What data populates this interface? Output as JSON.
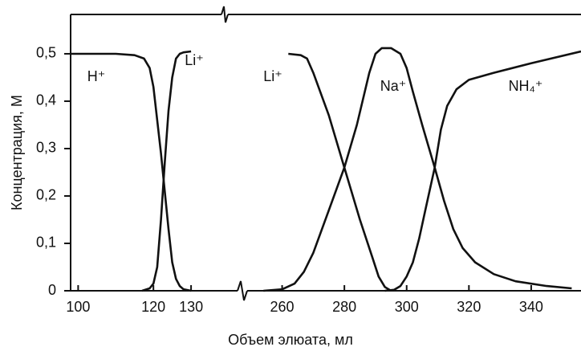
{
  "chart_data": {
    "type": "line",
    "y_label": "Концентрация, М",
    "x_label": "Объем элюата, мл",
    "ylim": [
      0,
      0.583
    ],
    "yticks": [
      0,
      {
        "value": 0.1,
        "label": "0,1"
      },
      {
        "value": 0.2,
        "label": "0,2"
      },
      {
        "value": 0.3,
        "label": "0,3"
      },
      {
        "value": 0.4,
        "label": "0,4"
      },
      {
        "value": 0.5,
        "label": "0,5"
      }
    ],
    "x_segments": [
      {
        "xlim": [
          98,
          140
        ],
        "xticks": [
          100,
          120,
          130
        ]
      },
      {
        "xlim": [
          248,
          356
        ],
        "xticks": [
          260,
          280,
          300,
          320,
          340
        ]
      }
    ],
    "series": [
      {
        "name": "H⁺",
        "color": "#111111",
        "segment": 0,
        "x": [
          98,
          110,
          115,
          117.5,
          119,
          120,
          121,
          122,
          123,
          124,
          125,
          126,
          127,
          128,
          130
        ],
        "values": [
          0.5,
          0.5,
          0.497,
          0.49,
          0.47,
          0.43,
          0.36,
          0.29,
          0.21,
          0.13,
          0.06,
          0.025,
          0.01,
          0.003,
          0
        ]
      },
      {
        "name": "Li⁺",
        "color": "#111111",
        "segment": 0,
        "x": [
          117,
          119,
          120,
          121,
          122,
          123,
          124,
          125,
          126,
          127,
          128,
          130
        ],
        "values": [
          0,
          0.005,
          0.015,
          0.05,
          0.15,
          0.27,
          0.38,
          0.45,
          0.49,
          0.5,
          0.503,
          0.505
        ]
      },
      {
        "name": "Li⁺",
        "color": "#111111",
        "segment": 1,
        "x": [
          262,
          266,
          268,
          270,
          275,
          280,
          285,
          289,
          291,
          293,
          295
        ],
        "values": [
          0.5,
          0.497,
          0.49,
          0.46,
          0.37,
          0.26,
          0.15,
          0.07,
          0.03,
          0.008,
          0
        ]
      },
      {
        "name": "Na⁺",
        "color": "#111111",
        "segment": 1,
        "x": [
          254,
          260,
          264,
          267,
          270,
          275,
          280,
          284,
          288,
          290,
          292,
          295,
          298,
          300,
          302,
          305,
          309,
          312,
          315,
          318,
          322,
          328,
          335,
          345,
          353
        ],
        "values": [
          0,
          0.003,
          0.015,
          0.04,
          0.08,
          0.17,
          0.26,
          0.35,
          0.46,
          0.5,
          0.512,
          0.512,
          0.5,
          0.47,
          0.42,
          0.35,
          0.26,
          0.19,
          0.13,
          0.09,
          0.06,
          0.035,
          0.02,
          0.01,
          0.005
        ]
      },
      {
        "name": "NH₄⁺",
        "color": "#111111",
        "segment": 1,
        "x": [
          293,
          296,
          298,
          300,
          302,
          304,
          306,
          309,
          311,
          313,
          316,
          320,
          328,
          340,
          356
        ],
        "values": [
          0,
          0.002,
          0.01,
          0.03,
          0.06,
          0.11,
          0.17,
          0.26,
          0.34,
          0.39,
          0.425,
          0.445,
          0.46,
          0.48,
          0.505
        ]
      }
    ]
  }
}
